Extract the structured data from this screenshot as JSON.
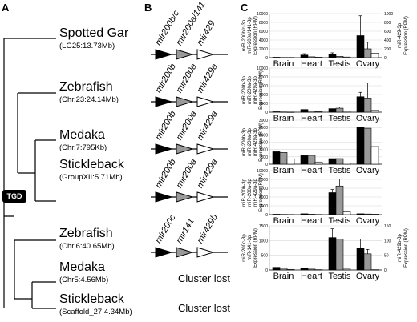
{
  "panels": {
    "a": "A",
    "b": "B",
    "c": "C"
  },
  "tgd_label": "TGD",
  "species": [
    {
      "name": "Spotted Gar",
      "locus": "(LG25:13.73Mb)"
    },
    {
      "name": "Zebrafish",
      "locus": "(Chr.23:24.14Mb)"
    },
    {
      "name": "Medaka",
      "locus": "(Chr.7:795Kb)"
    },
    {
      "name": "Stickleback",
      "locus": "(GroupXII:5.71Mb)"
    },
    {
      "name": "Zebrafish",
      "locus": "(Chr.6:40.65Mb)"
    },
    {
      "name": "Medaka",
      "locus": "(Chr5:4.56Mb)"
    },
    {
      "name": "Stickleback",
      "locus": "(Scaffold_27:4.34Mb)"
    }
  ],
  "clusters": [
    [
      "mir200b/c",
      "mir200a/141",
      "mir429"
    ],
    [
      "mir200b",
      "mir200a",
      "mir429a"
    ],
    [
      "mir200b",
      "mir200a",
      "mir429a"
    ],
    [
      "mir200b",
      "mir200a",
      "mir429a"
    ],
    [
      "mir200c",
      "mir141",
      "mir429b"
    ]
  ],
  "cluster_lost": "Cluster lost",
  "colors": {
    "series1": "#000000",
    "series2": "#999999",
    "series3": "#ffffff",
    "tgd": "#000000"
  },
  "chart_data": [
    {
      "type": "bar",
      "categories": [
        "Brain",
        "Heart",
        "Testis",
        "Ovary"
      ],
      "ylabel_left": [
        "miR-200b/c-3p",
        "miR-200a/141-3p",
        "Expression (RPM)"
      ],
      "ylabel_right": [
        "miR-429-3p",
        "Expression (RPM)"
      ],
      "ylim": [
        0,
        10000
      ],
      "yticks": [
        0,
        2000,
        4000,
        6000,
        8000,
        10000
      ],
      "ylim_right": [
        0,
        1000
      ],
      "yticks_right": [
        0,
        200,
        400,
        600,
        800,
        1000
      ],
      "series": [
        {
          "values": [
            100,
            600,
            800,
            5000
          ],
          "errors": [
            0,
            300,
            300,
            4500
          ]
        },
        {
          "values": [
            50,
            200,
            300,
            2000
          ],
          "errors": [
            0,
            0,
            0,
            1500
          ]
        },
        {
          "values": [
            5,
            10,
            15,
            100
          ],
          "errors": [
            0,
            0,
            0,
            0
          ],
          "axis": "right"
        }
      ]
    },
    {
      "type": "bar",
      "categories": [
        "Brain",
        "Heart",
        "Testis",
        "Ovary"
      ],
      "ylabel_left": [
        "miR-200b-3p",
        "miR-200a-3p",
        "miR-429a-3p",
        "Expression (RPM)"
      ],
      "ylim": [
        0,
        10000
      ],
      "yticks": [
        0,
        2000,
        4000,
        6000,
        8000,
        10000
      ],
      "series": [
        {
          "values": [
            100,
            600,
            800,
            3500
          ],
          "errors": [
            0,
            0,
            0,
            1000
          ]
        },
        {
          "values": [
            50,
            300,
            900,
            3200
          ],
          "errors": [
            0,
            0,
            300,
            3400
          ]
        },
        {
          "values": [
            30,
            100,
            200,
            400
          ],
          "errors": [
            0,
            0,
            0,
            0
          ]
        }
      ]
    },
    {
      "type": "bar",
      "categories": [
        "Brain",
        "Heart",
        "Testis",
        "Ovary"
      ],
      "ylabel_left": [
        "miR-200b-3p",
        "miR-200a-3p",
        "miR-429a-3p",
        "Expression (RPM)"
      ],
      "ylim": [
        0,
        3000
      ],
      "yticks": [
        0,
        500,
        1000,
        1500,
        2000,
        2500,
        3000
      ],
      "series": [
        {
          "values": [
            850,
            580,
            380,
            2500
          ],
          "errors": [
            0,
            0,
            0,
            0
          ]
        },
        {
          "values": [
            800,
            600,
            380,
            2450
          ],
          "errors": [
            0,
            0,
            0,
            0
          ]
        },
        {
          "values": [
            350,
            150,
            80,
            1200
          ],
          "errors": [
            0,
            0,
            0,
            0
          ]
        }
      ]
    },
    {
      "type": "bar",
      "categories": [
        "Brain",
        "Heart",
        "Testis",
        "Ovary"
      ],
      "ylabel_left": [
        "miR-200b-3p",
        "miR-200a-3p",
        "miR-429a-3p",
        "Expression (RPM)"
      ],
      "ylim": [
        0,
        10000
      ],
      "yticks": [
        0,
        2000,
        4000,
        6000,
        8000,
        10000
      ],
      "series": [
        {
          "values": [
            100,
            200,
            5000,
            200
          ],
          "errors": [
            0,
            0,
            700,
            0
          ]
        },
        {
          "values": [
            60,
            100,
            6500,
            150
          ],
          "errors": [
            0,
            0,
            1600,
            0
          ]
        },
        {
          "values": [
            40,
            50,
            600,
            100
          ],
          "errors": [
            0,
            0,
            0,
            0
          ]
        }
      ]
    },
    {
      "type": "bar",
      "categories": [
        "Brain",
        "Heart",
        "Testis",
        "Ovary"
      ],
      "ylabel_left": [
        "miR-200c-3p",
        "miR-141-3p",
        "Expression (RPM)"
      ],
      "ylabel_right": [
        "miR-429b-3p",
        "Expression (RPM)"
      ],
      "ylim": [
        0,
        1500
      ],
      "yticks": [
        0,
        500,
        1000,
        1500
      ],
      "ylim_right": [
        0,
        150
      ],
      "yticks_right": [
        0,
        50,
        100,
        150
      ],
      "series": [
        {
          "values": [
            90,
            60,
            1100,
            750
          ],
          "errors": [
            0,
            0,
            300,
            300
          ]
        },
        {
          "values": [
            60,
            30,
            1050,
            550
          ],
          "errors": [
            0,
            0,
            0,
            150
          ]
        },
        {
          "values": [
            2,
            1,
            3,
            1
          ],
          "errors": [
            0,
            0,
            0,
            0
          ],
          "axis": "right"
        }
      ]
    }
  ]
}
